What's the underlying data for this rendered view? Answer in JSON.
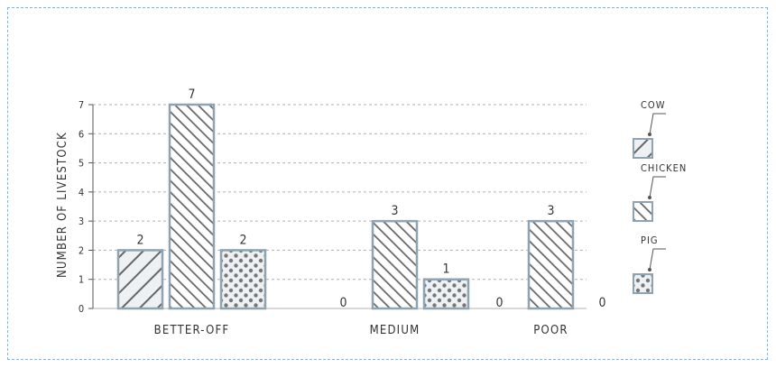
{
  "chart_data": {
    "type": "bar",
    "ylabel": "NUMBER OF LIVESTOCK",
    "ylim": [
      0,
      7
    ],
    "yticks": [
      "0",
      "1",
      "2",
      "3",
      "4",
      "5",
      "6",
      "7"
    ],
    "categories": [
      "BETTER-OFF",
      "MEDIUM",
      "POOR"
    ],
    "series": [
      {
        "name": "COW",
        "values": [
          2,
          0,
          0
        ]
      },
      {
        "name": "CHICKEN",
        "values": [
          7,
          3,
          3
        ]
      },
      {
        "name": "PIG",
        "values": [
          2,
          1,
          0
        ]
      }
    ],
    "grid": true,
    "legend": "right",
    "colors": {
      "stroke": "#8fa3b1",
      "pattern": "#666666",
      "fill": "#eef1f3",
      "grid": "#b0b0b0"
    }
  }
}
